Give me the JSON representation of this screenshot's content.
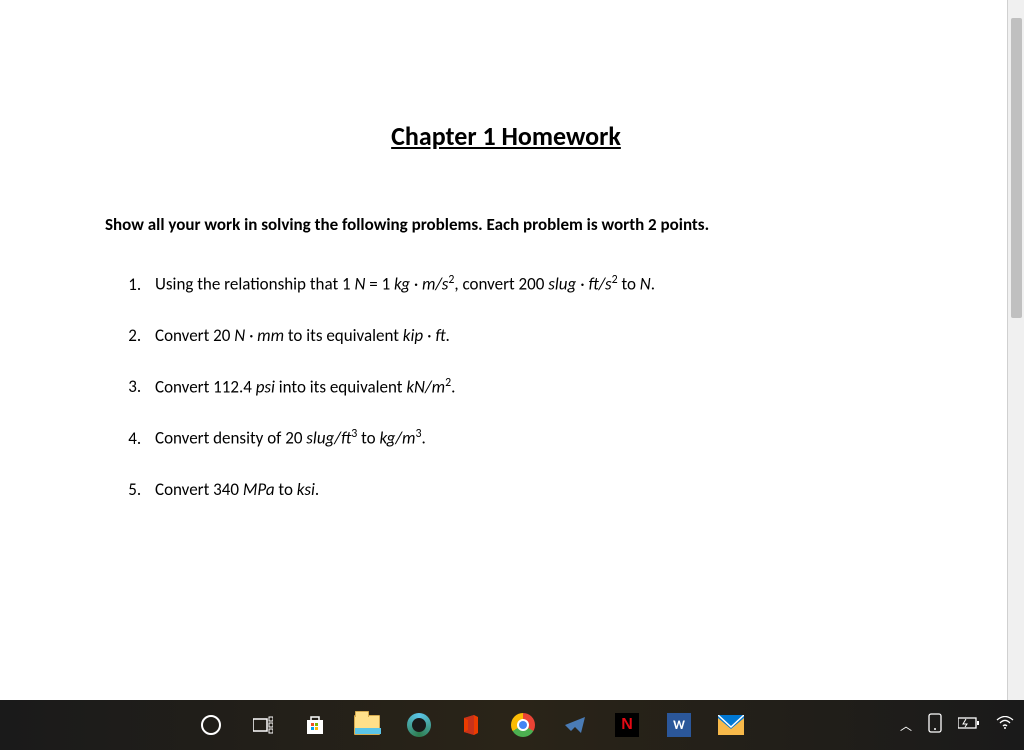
{
  "document": {
    "title": "Chapter 1 Homework",
    "instructions": "Show all your work in solving the following problems. Each problem is worth 2 points.",
    "problems": [
      {
        "html": "Using the relationship that 1 <span class='it'>N</span> = 1 <span class='it'>kg · m/s</span><sup>2</sup>, convert 200 <span class='it'>slug · ft/s</span><sup>2</sup> to <span class='it'>N</span>."
      },
      {
        "html": "Convert 20 <span class='it'>N · mm</span> to its equivalent <span class='it'>kip · ft</span>."
      },
      {
        "html": "Convert 112.4 <span class='it'>psi</span> into its equivalent <span class='it'>kN/m</span><sup>2</sup>."
      },
      {
        "html": "Convert density of 20 <span class='it'>slug/ft</span><sup>3</sup> to <span class='it'>kg/m</span><sup>3</sup>."
      },
      {
        "html": "Convert 340 <span class='it'>MPa</span> to <span class='it'>ksi</span>."
      }
    ]
  },
  "taskbar": {
    "items": [
      {
        "name": "cortana",
        "label": "Cortana"
      },
      {
        "name": "taskview",
        "label": "Task View"
      },
      {
        "name": "store",
        "label": "Microsoft Store"
      },
      {
        "name": "explorer",
        "label": "File Explorer"
      },
      {
        "name": "edge",
        "label": "Microsoft Edge"
      },
      {
        "name": "office",
        "label": "Office"
      },
      {
        "name": "chrome",
        "label": "Google Chrome"
      },
      {
        "name": "plane",
        "label": "App"
      },
      {
        "name": "netflix",
        "label": "Netflix"
      },
      {
        "name": "word",
        "label": "Word"
      },
      {
        "name": "mail",
        "label": "Mail"
      }
    ],
    "netflix_letter": "N",
    "word_letter": "W"
  },
  "colors": {
    "doc_bg": "#ffffff",
    "text": "#000000",
    "taskbar_bg": "#1a1a1a",
    "scrollbar": "#f0f0f0",
    "scrollthumb": "#c0c0c0"
  }
}
